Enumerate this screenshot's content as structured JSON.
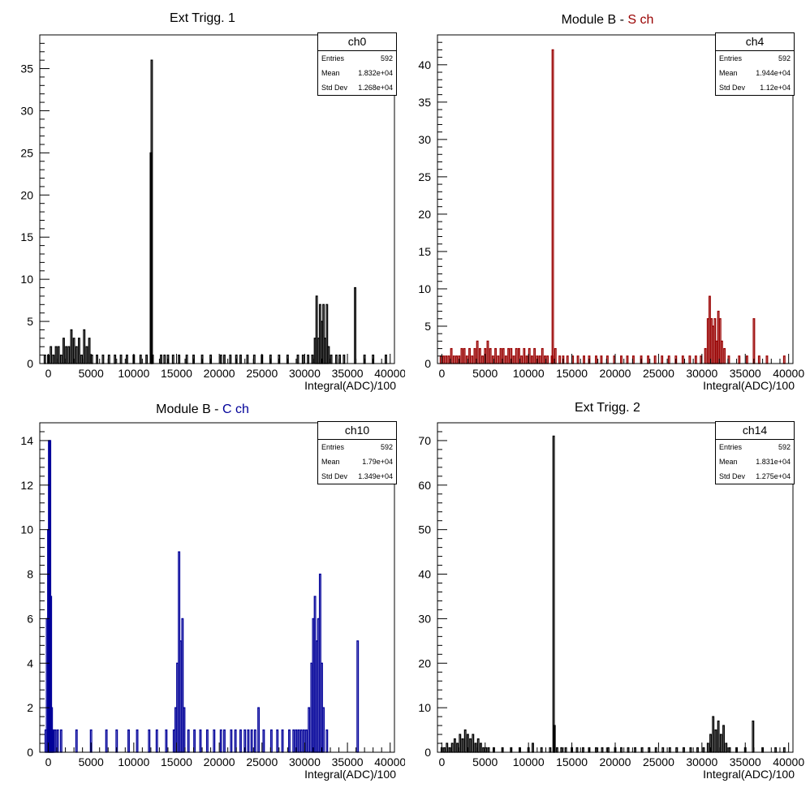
{
  "chart_data": [
    {
      "type": "bar",
      "title": "Ext Trigg. 1",
      "title_prefix": "Ext Trigg. 1",
      "title_colored": "",
      "title_color": "#000000",
      "line_color": "#000000",
      "xlabel": "Integral(ADC)/100",
      "xlim": [
        -1000,
        40500
      ],
      "ylim": [
        0,
        39
      ],
      "xticks": [
        0,
        5000,
        10000,
        15000,
        20000,
        25000,
        30000,
        35000,
        40000
      ],
      "yticks": [
        0,
        5,
        10,
        15,
        20,
        25,
        30,
        35
      ],
      "grid": false,
      "stats": {
        "name": "ch0",
        "entries": "592",
        "mean": "1.832e+04",
        "std_dev": "1.268e+04"
      },
      "stat_labels": {
        "entries": "Entries",
        "mean": "Mean",
        "std_dev": "Std Dev"
      },
      "x": [
        -400,
        0,
        300,
        600,
        900,
        1200,
        1500,
        1800,
        2100,
        2400,
        2700,
        3000,
        3300,
        3600,
        3900,
        4200,
        4500,
        4800,
        5100,
        5700,
        6400,
        7100,
        7800,
        8500,
        9200,
        10000,
        10800,
        11500,
        12000,
        12100,
        12200,
        13200,
        13600,
        14000,
        14600,
        15300,
        16200,
        17000,
        18000,
        19000,
        20200,
        20600,
        21300,
        22000,
        22500,
        23300,
        24100,
        25000,
        26000,
        27000,
        28000,
        29200,
        29800,
        30400,
        30900,
        31200,
        31400,
        31600,
        31800,
        32000,
        32200,
        32400,
        32600,
        32800,
        33100,
        33700,
        34100,
        34600,
        35900,
        37000,
        38000,
        39500
      ],
      "y": [
        1,
        1,
        2,
        1,
        2,
        2,
        1,
        3,
        2,
        2,
        4,
        3,
        2,
        3,
        1,
        4,
        2,
        3,
        1,
        1,
        1,
        1,
        1,
        1,
        1,
        1,
        1,
        1,
        25,
        36,
        1,
        1,
        1,
        1,
        1,
        1,
        1,
        1,
        1,
        1,
        1,
        1,
        1,
        1,
        1,
        1,
        1,
        1,
        1,
        1,
        1,
        1,
        1,
        1,
        1,
        3,
        8,
        3,
        7,
        5,
        7,
        3,
        7,
        2,
        1,
        1,
        1,
        1,
        9,
        1,
        1,
        1
      ]
    },
    {
      "type": "bar",
      "title": "Module B - S ch",
      "title_prefix": "Module B - ",
      "title_colored": "S ch",
      "title_color": "#990000",
      "line_color": "#990000",
      "xlabel": "Integral(ADC)/100",
      "xlim": [
        -500,
        40500
      ],
      "ylim": [
        0,
        44
      ],
      "xticks": [
        0,
        5000,
        10000,
        15000,
        20000,
        25000,
        30000,
        35000,
        40000
      ],
      "yticks": [
        0,
        5,
        10,
        15,
        20,
        25,
        30,
        35,
        40
      ],
      "grid": false,
      "stats": {
        "name": "ch4",
        "entries": "592",
        "mean": "1.944e+04",
        "std_dev": "1.12e+04"
      },
      "stat_labels": {
        "entries": "Entries",
        "mean": "Mean",
        "std_dev": "Std Dev"
      },
      "x": [
        -100,
        200,
        500,
        800,
        1100,
        1400,
        1700,
        2000,
        2300,
        2600,
        2900,
        3200,
        3500,
        3800,
        4100,
        4400,
        4700,
        5000,
        5300,
        5600,
        5900,
        6200,
        6500,
        6800,
        7100,
        7400,
        7700,
        8000,
        8300,
        8600,
        8900,
        9200,
        9500,
        9800,
        10100,
        10400,
        10700,
        11000,
        11300,
        11600,
        11900,
        12200,
        12700,
        12800,
        13100,
        13600,
        14000,
        14500,
        15100,
        15700,
        16400,
        17000,
        17800,
        18400,
        19100,
        19900,
        20700,
        21400,
        22100,
        23000,
        23800,
        24600,
        25400,
        26200,
        27000,
        27800,
        28600,
        29300,
        29900,
        30400,
        30700,
        30900,
        31100,
        31300,
        31500,
        31700,
        31900,
        32100,
        32300,
        32600,
        33100,
        34300,
        35200,
        36000,
        36600,
        37500,
        39500
      ],
      "y": [
        1,
        1,
        1,
        1,
        2,
        1,
        1,
        1,
        2,
        2,
        1,
        2,
        1,
        2,
        3,
        2,
        1,
        2,
        3,
        2,
        1,
        2,
        1,
        2,
        2,
        1,
        2,
        2,
        1,
        2,
        2,
        1,
        2,
        1,
        2,
        1,
        2,
        1,
        1,
        2,
        1,
        1,
        1,
        42,
        2,
        1,
        1,
        1,
        1,
        1,
        1,
        1,
        1,
        1,
        1,
        1,
        1,
        1,
        1,
        1,
        1,
        1,
        1,
        1,
        1,
        1,
        1,
        1,
        1,
        2,
        6,
        9,
        6,
        5,
        6,
        3,
        7,
        6,
        3,
        2,
        1,
        1,
        1,
        6,
        1,
        1,
        1
      ]
    },
    {
      "type": "bar",
      "title": "Module B - C ch",
      "title_prefix": "Module B - ",
      "title_colored": "C ch",
      "title_color": "#000099",
      "line_color": "#000099",
      "xlabel": "Integral(ADC)/100",
      "xlim": [
        -1000,
        40500
      ],
      "ylim": [
        0,
        14.8
      ],
      "xticks": [
        0,
        5000,
        10000,
        15000,
        20000,
        25000,
        30000,
        35000,
        40000
      ],
      "yticks": [
        0,
        2,
        4,
        6,
        8,
        10,
        12,
        14
      ],
      "grid": false,
      "stats": {
        "name": "ch10",
        "entries": "592",
        "mean": "1.79e+04",
        "std_dev": "1.349e+04"
      },
      "stat_labels": {
        "entries": "Entries",
        "mean": "Mean",
        "std_dev": "Std Dev"
      },
      "x": [
        -300,
        -150,
        0,
        100,
        200,
        300,
        400,
        500,
        600,
        800,
        1100,
        1500,
        2200,
        3300,
        5000,
        6800,
        8000,
        9400,
        10400,
        11800,
        12700,
        13800,
        14700,
        14900,
        15100,
        15300,
        15500,
        15700,
        15900,
        16400,
        17100,
        17800,
        18600,
        19400,
        20200,
        20600,
        21400,
        21900,
        22500,
        23000,
        23400,
        23800,
        24200,
        24600,
        25200,
        26100,
        26800,
        27400,
        28200,
        28700,
        29000,
        29300,
        29600,
        29900,
        30200,
        30500,
        30800,
        31000,
        31200,
        31400,
        31600,
        31800,
        32000,
        32200,
        32600,
        33500,
        34200,
        35000,
        36200,
        37600,
        39000
      ],
      "y": [
        1,
        6,
        10,
        14,
        14,
        7,
        2,
        1,
        1,
        1,
        1,
        1,
        0,
        1,
        1,
        1,
        1,
        1,
        1,
        1,
        1,
        1,
        1,
        2,
        4,
        9,
        5,
        6,
        2,
        1,
        1,
        1,
        1,
        1,
        1,
        1,
        1,
        1,
        1,
        1,
        1,
        1,
        1,
        2,
        1,
        1,
        1,
        1,
        1,
        1,
        1,
        1,
        1,
        1,
        1,
        2,
        4,
        6,
        7,
        5,
        6,
        8,
        4,
        2,
        1,
        0,
        0,
        0,
        5,
        0,
        0
      ]
    },
    {
      "type": "bar",
      "title": "Ext Trigg. 2",
      "title_prefix": "Ext Trigg. 2",
      "title_colored": "",
      "title_color": "#000000",
      "line_color": "#000000",
      "xlabel": "Integral(ADC)/100",
      "xlim": [
        -500,
        40500
      ],
      "ylim": [
        0,
        74
      ],
      "xticks": [
        0,
        5000,
        10000,
        15000,
        20000,
        25000,
        30000,
        35000,
        40000
      ],
      "yticks": [
        0,
        10,
        20,
        30,
        40,
        50,
        60,
        70
      ],
      "grid": false,
      "stats": {
        "name": "ch14",
        "entries": "592",
        "mean": "1.831e+04",
        "std_dev": "1.275e+04"
      },
      "stat_labels": {
        "entries": "Entries",
        "mean": "Mean",
        "std_dev": "Std Dev"
      },
      "x": [
        0,
        300,
        600,
        900,
        1200,
        1500,
        1800,
        2100,
        2400,
        2700,
        3000,
        3300,
        3600,
        3900,
        4200,
        4500,
        4800,
        5100,
        5400,
        6000,
        7000,
        8000,
        9000,
        10000,
        10500,
        11500,
        12500,
        12900,
        13000,
        13300,
        13800,
        14300,
        15000,
        15600,
        16300,
        17000,
        17800,
        18500,
        19200,
        20000,
        20700,
        21500,
        22300,
        23100,
        23900,
        24700,
        25500,
        26300,
        27100,
        27900,
        28700,
        29500,
        30200,
        30700,
        31000,
        31300,
        31600,
        31900,
        32200,
        32500,
        32800,
        33200,
        34000,
        35000,
        35900,
        37000,
        38500,
        39500
      ],
      "y": [
        1,
        1,
        2,
        1,
        2,
        3,
        2,
        4,
        3,
        5,
        4,
        3,
        4,
        2,
        3,
        2,
        1,
        1,
        1,
        1,
        1,
        1,
        1,
        1,
        2,
        1,
        1,
        71,
        6,
        1,
        1,
        1,
        1,
        1,
        1,
        1,
        1,
        1,
        1,
        1,
        1,
        1,
        1,
        1,
        1,
        1,
        1,
        1,
        1,
        1,
        1,
        1,
        1,
        2,
        4,
        8,
        5,
        7,
        4,
        6,
        2,
        1,
        1,
        1,
        7,
        1,
        1,
        1
      ]
    }
  ]
}
